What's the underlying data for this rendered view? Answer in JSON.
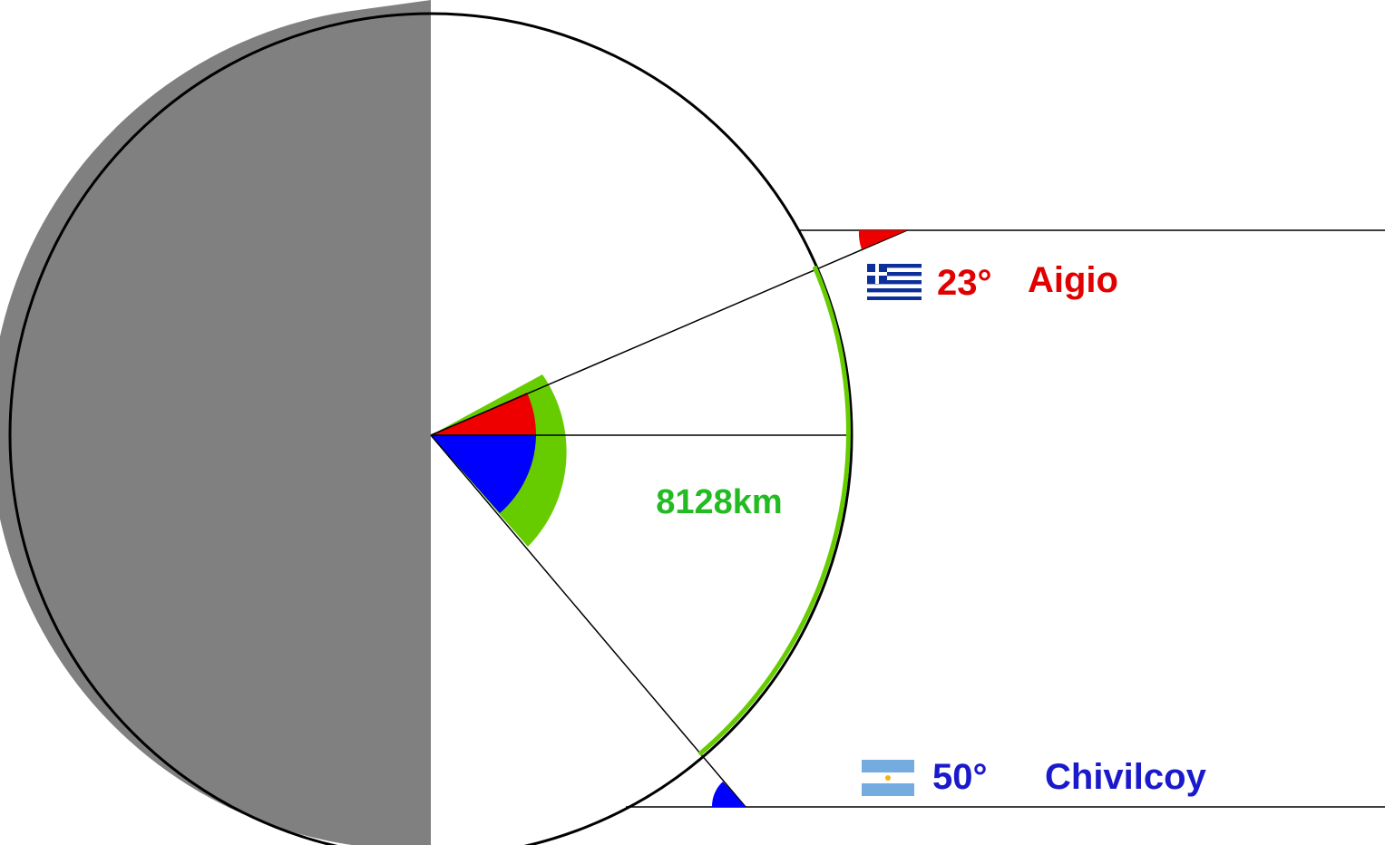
{
  "colors": {
    "red": "#ee0000",
    "green": "#66cc00",
    "blue": "#0000ff",
    "shadow": "#808080",
    "outline": "#000000",
    "arc": "#66cc00",
    "label_green": "#22bb22",
    "label_red": "#e00000",
    "label_blue": "#1a1acc"
  },
  "city_a": {
    "name": "Aigio",
    "angle_label": "23°",
    "angle_deg": 23,
    "flag": "greece-flag-icon"
  },
  "city_b": {
    "name": "Chivilcoy",
    "angle_label": "50°",
    "angle_deg": 50,
    "flag": "argentina-flag-icon"
  },
  "distance": {
    "label": "8128km"
  }
}
